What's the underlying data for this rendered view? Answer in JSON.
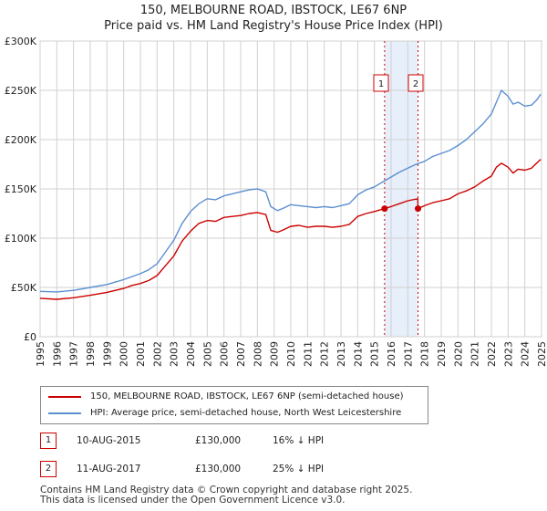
{
  "title_line1": "150, MELBOURNE ROAD, IBSTOCK, LE67 6NP",
  "title_line2": "Price paid vs. HM Land Registry's House Price Index (HPI)",
  "colors": {
    "property": "#cc0000",
    "hpi": "#5b8fd0",
    "shade": "#dde8f8",
    "grid": "#d0d0d0"
  },
  "chart_data": {
    "type": "line",
    "title": "150, MELBOURNE ROAD, IBSTOCK, LE67 6NP - Price paid vs. HM Land Registry's House Price Index (HPI)",
    "xlabel": "",
    "ylabel": "",
    "xlim": [
      1995,
      2025
    ],
    "ylim": [
      0,
      300000
    ],
    "grid": true,
    "x_ticks": [
      1995,
      1996,
      1997,
      1998,
      1999,
      2000,
      2001,
      2002,
      2003,
      2004,
      2005,
      2006,
      2007,
      2008,
      2009,
      2010,
      2011,
      2012,
      2013,
      2014,
      2015,
      2016,
      2017,
      2018,
      2019,
      2020,
      2021,
      2022,
      2023,
      2024,
      2025
    ],
    "y_ticks": [
      0,
      50000,
      100000,
      150000,
      200000,
      250000,
      300000
    ],
    "y_tick_labels": [
      "£0",
      "£50K",
      "£100K",
      "£150K",
      "£200K",
      "£250K",
      "£300K"
    ],
    "shaded_range": [
      2015.61,
      2017.61
    ],
    "series": [
      {
        "name": "150, MELBOURNE ROAD, IBSTOCK, LE67 6NP (semi-detached house)",
        "color": "#cc0000",
        "x": [
          1995.0,
          1996.0,
          1997.0,
          1998.0,
          1999.0,
          2000.0,
          2000.5,
          2001.0,
          2001.5,
          2002.0,
          2002.5,
          2003.0,
          2003.5,
          2004.0,
          2004.5,
          2005.0,
          2005.5,
          2006.0,
          2006.5,
          2007.0,
          2007.5,
          2008.0,
          2008.5,
          2008.8,
          2009.2,
          2009.5,
          2010.0,
          2010.5,
          2011.0,
          2011.5,
          2012.0,
          2012.5,
          2013.0,
          2013.5,
          2014.0,
          2014.5,
          2015.0,
          2015.61,
          2016.0,
          2016.5,
          2017.0,
          2017.6,
          2017.61,
          2018.0,
          2018.5,
          2019.0,
          2019.5,
          2020.0,
          2020.5,
          2021.0,
          2021.5,
          2022.0,
          2022.3,
          2022.6,
          2023.0,
          2023.3,
          2023.6,
          2024.0,
          2024.4,
          2024.7,
          2024.95
        ],
        "y": [
          39000,
          38000,
          39500,
          42000,
          45000,
          49000,
          52000,
          54000,
          57000,
          62000,
          72000,
          82000,
          97000,
          107000,
          115000,
          118000,
          117000,
          121000,
          122000,
          123000,
          125000,
          126000,
          124000,
          108000,
          106000,
          108000,
          112000,
          113000,
          111000,
          112000,
          112000,
          111000,
          112000,
          114000,
          122000,
          125000,
          127000,
          130000,
          132000,
          135000,
          138000,
          140000,
          130000,
          133000,
          136000,
          138000,
          140000,
          145000,
          148000,
          152000,
          158000,
          163000,
          172000,
          176000,
          172000,
          166000,
          170000,
          169000,
          171000,
          176000,
          180000
        ]
      },
      {
        "name": "HPI: Average price, semi-detached house, North West Leicestershire",
        "color": "#5b8fd0",
        "x": [
          1995.0,
          1996.0,
          1997.0,
          1998.0,
          1999.0,
          2000.0,
          2000.5,
          2001.0,
          2001.5,
          2002.0,
          2002.5,
          2003.0,
          2003.5,
          2004.0,
          2004.5,
          2005.0,
          2005.5,
          2006.0,
          2006.5,
          2007.0,
          2007.5,
          2008.0,
          2008.5,
          2008.8,
          2009.2,
          2009.5,
          2010.0,
          2010.5,
          2011.0,
          2011.5,
          2012.0,
          2012.5,
          2013.0,
          2013.5,
          2014.0,
          2014.5,
          2015.0,
          2015.5,
          2016.0,
          2016.5,
          2017.0,
          2017.5,
          2018.0,
          2018.5,
          2019.0,
          2019.5,
          2020.0,
          2020.5,
          2021.0,
          2021.5,
          2022.0,
          2022.3,
          2022.6,
          2023.0,
          2023.3,
          2023.6,
          2024.0,
          2024.4,
          2024.7,
          2024.95
        ],
        "y": [
          46000,
          45500,
          47000,
          50000,
          53000,
          58000,
          61000,
          64000,
          68000,
          74000,
          86000,
          98000,
          115000,
          127000,
          135000,
          140000,
          139000,
          143000,
          145000,
          147000,
          149000,
          150000,
          147000,
          132000,
          128000,
          130000,
          134000,
          133000,
          132000,
          131000,
          132000,
          131000,
          133000,
          135000,
          144000,
          149000,
          152000,
          157000,
          162000,
          167000,
          171000,
          175000,
          178000,
          183000,
          186000,
          189000,
          194000,
          200000,
          208000,
          216000,
          226000,
          238000,
          250000,
          244000,
          236000,
          238000,
          234000,
          235000,
          240000,
          246000
        ]
      }
    ],
    "annotations": [
      {
        "label": "1",
        "x": 2015.61,
        "y": 130000
      },
      {
        "label": "2",
        "x": 2017.61,
        "y": 130000
      }
    ]
  },
  "legend": {
    "property_label": "150, MELBOURNE ROAD, IBSTOCK, LE67 6NP (semi-detached house)",
    "hpi_label": "HPI: Average price, semi-detached house, North West Leicestershire"
  },
  "sales": [
    {
      "num": "1",
      "date": "10-AUG-2015",
      "price": "£130,000",
      "hpi": "16% ↓ HPI"
    },
    {
      "num": "2",
      "date": "11-AUG-2017",
      "price": "£130,000",
      "hpi": "25% ↓ HPI"
    }
  ],
  "footer": {
    "line1": "Contains HM Land Registry data © Crown copyright and database right 2025.",
    "line2": "This data is licensed under the Open Government Licence v3.0."
  }
}
